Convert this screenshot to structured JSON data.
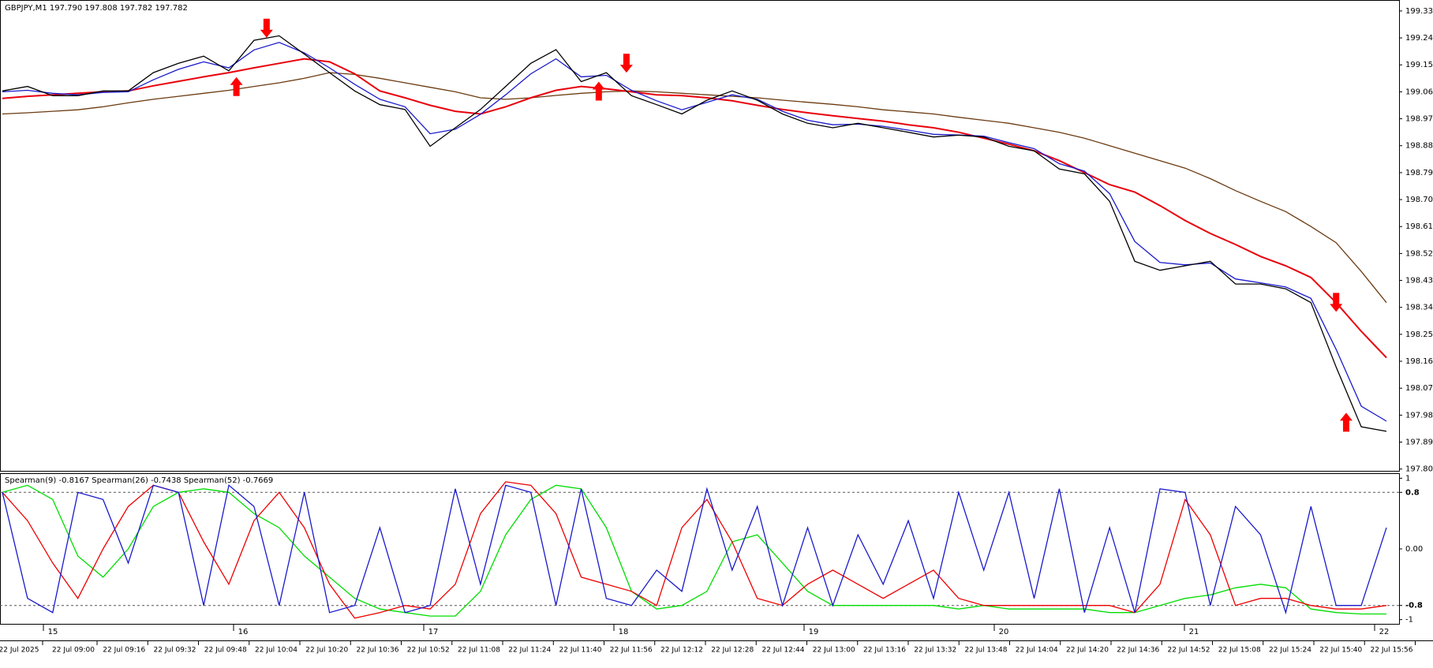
{
  "chart_data": [
    {
      "type": "line",
      "title": "GBPJPY,M1  197.790 197.808 197.782 197.782",
      "ylim": [
        197.794,
        199.364
      ],
      "yticks": [
        {
          "value": 199.33,
          "label": "199.330"
        },
        {
          "value": 199.24,
          "label": "199.240"
        },
        {
          "value": 199.15,
          "label": "199.150"
        },
        {
          "value": 199.06,
          "label": "199.060"
        },
        {
          "value": 198.97,
          "label": "198.970"
        },
        {
          "value": 198.88,
          "label": "198.880"
        },
        {
          "value": 198.79,
          "label": "198.790"
        },
        {
          "value": 198.7,
          "label": "198.700"
        },
        {
          "value": 198.61,
          "label": "198.610"
        },
        {
          "value": 198.52,
          "label": "198.520"
        },
        {
          "value": 198.43,
          "label": "198.430"
        },
        {
          "value": 198.34,
          "label": "198.340"
        },
        {
          "value": 198.25,
          "label": "198.250"
        },
        {
          "value": 198.16,
          "label": "198.160"
        },
        {
          "value": 198.07,
          "label": "198.070"
        },
        {
          "value": 197.98,
          "label": "197.980"
        },
        {
          "value": 197.89,
          "label": "197.890"
        },
        {
          "value": 197.8,
          "label": "197.800"
        }
      ],
      "series": [
        {
          "color": "#6b3a10",
          "values": [
            198.986,
            198.99,
            198.995,
            199.0,
            199.01,
            199.023,
            199.035,
            199.045,
            199.055,
            199.065,
            199.078,
            199.09,
            199.105,
            199.124,
            199.118,
            199.105,
            199.09,
            199.075,
            199.06,
            199.04,
            199.035,
            199.04,
            199.048,
            199.055,
            199.06,
            199.063,
            199.06,
            199.055,
            199.05,
            199.045,
            199.04,
            199.032,
            199.025,
            199.018,
            199.01,
            199.0,
            198.993,
            198.986,
            198.975,
            198.965,
            198.955,
            198.94,
            198.925,
            198.905,
            198.88,
            198.855,
            198.83,
            198.805,
            198.77,
            198.73,
            198.694,
            198.66,
            198.61,
            198.556,
            198.46,
            198.356
          ]
        },
        {
          "color": "#e8000b",
          "values": [
            199.038,
            199.045,
            199.05,
            199.055,
            199.06,
            199.063,
            199.08,
            199.095,
            199.11,
            199.124,
            199.14,
            199.155,
            199.17,
            199.16,
            199.12,
            199.063,
            199.04,
            199.015,
            198.995,
            198.986,
            199.01,
            199.04,
            199.065,
            199.078,
            199.07,
            199.06,
            199.05,
            199.047,
            199.04,
            199.03,
            199.015,
            199.001,
            198.99,
            198.98,
            198.971,
            198.962,
            198.95,
            198.94,
            198.925,
            198.905,
            198.885,
            198.863,
            198.83,
            198.79,
            198.75,
            198.725,
            198.68,
            198.63,
            198.587,
            198.55,
            198.51,
            198.479,
            198.44,
            198.356,
            198.26,
            198.172
          ]
        },
        {
          "color": "#1a1acc",
          "values": [
            199.06,
            199.065,
            199.055,
            199.05,
            199.058,
            199.06,
            199.1,
            199.135,
            199.16,
            199.14,
            199.2,
            199.225,
            199.19,
            199.14,
            199.085,
            199.035,
            199.01,
            198.92,
            198.935,
            198.985,
            199.05,
            199.12,
            199.17,
            199.11,
            199.115,
            199.065,
            199.03,
            199.0,
            199.025,
            199.05,
            199.035,
            198.995,
            198.965,
            198.95,
            198.952,
            198.945,
            198.932,
            198.918,
            198.916,
            198.912,
            198.89,
            198.87,
            198.82,
            198.795,
            198.72,
            198.56,
            198.49,
            198.482,
            198.488,
            198.435,
            198.422,
            198.408,
            198.37,
            198.2,
            198.01,
            197.96
          ]
        },
        {
          "color": "#000000",
          "values": [
            199.063,
            199.078,
            199.047,
            199.047,
            199.063,
            199.063,
            199.124,
            199.155,
            199.179,
            199.13,
            199.232,
            199.247,
            199.186,
            199.124,
            199.063,
            199.017,
            199.001,
            198.878,
            198.94,
            199.001,
            199.078,
            199.155,
            199.201,
            199.094,
            199.124,
            199.047,
            199.017,
            198.986,
            199.032,
            199.063,
            199.032,
            198.986,
            198.955,
            198.94,
            198.955,
            198.94,
            198.925,
            198.909,
            198.915,
            198.909,
            198.878,
            198.863,
            198.802,
            198.786,
            198.694,
            198.494,
            198.464,
            198.479,
            198.494,
            198.418,
            198.418,
            198.402,
            198.356,
            198.141,
            197.941,
            197.926
          ]
        }
      ],
      "markers": [
        {
          "x": 10.5,
          "value": 199.241,
          "direction": "down"
        },
        {
          "x": 9.3,
          "value": 199.109,
          "direction": "up"
        },
        {
          "x": 24.8,
          "value": 199.124,
          "direction": "down"
        },
        {
          "x": 23.7,
          "value": 199.094,
          "direction": "up"
        },
        {
          "x": 53.0,
          "value": 198.325,
          "direction": "down"
        },
        {
          "x": 53.4,
          "value": 197.988,
          "direction": "up"
        }
      ],
      "marker_color": "#ff0000",
      "period_labels": [
        "15",
        "16",
        "17",
        "18",
        "19",
        "20",
        "21",
        "22"
      ],
      "time_labels": [
        "22 Jul 2025",
        "22 Jul 09:00",
        "22 Jul 09:16",
        "22 Jul 09:32",
        "22 Jul 09:48",
        "22 Jul 10:04",
        "22 Jul 10:20",
        "22 Jul 10:36",
        "22 Jul 10:52",
        "22 Jul 11:08",
        "22 Jul 11:24",
        "22 Jul 11:40",
        "22 Jul 11:56",
        "22 Jul 12:12",
        "22 Jul 12:28",
        "22 Jul 12:44",
        "22 Jul 13:00",
        "22 Jul 13:16",
        "22 Jul 13:32",
        "22 Jul 13:48",
        "22 Jul 14:04",
        "22 Jul 14:20",
        "22 Jul 14:36",
        "22 Jul 14:52",
        "22 Jul 15:08",
        "22 Jul 15:24",
        "22 Jul 15:40",
        "22 Jul 15:56"
      ]
    },
    {
      "type": "line",
      "title": "Spearman(9) -0.8167  Spearman(26) -0.7438  Spearman(52) -0.7669",
      "ylim": [
        -1.06,
        1.06
      ],
      "yticks": [
        1,
        0.8,
        {
          "value": 0,
          "label": "0.00"
        },
        -0.8,
        -1
      ],
      "levels": [
        0.8,
        -0.8
      ],
      "series": [
        {
          "color": "#00dd00",
          "values": [
            0.8,
            0.9,
            0.7,
            -0.1,
            -0.4,
            0.0,
            0.6,
            0.8,
            0.85,
            0.8,
            0.5,
            0.3,
            -0.1,
            -0.4,
            -0.7,
            -0.85,
            -0.9,
            -0.95,
            -0.95,
            -0.6,
            0.2,
            0.7,
            0.9,
            0.85,
            0.3,
            -0.6,
            -0.85,
            -0.8,
            -0.6,
            0.1,
            0.2,
            -0.2,
            -0.6,
            -0.8,
            -0.8,
            -0.8,
            -0.8,
            -0.8,
            -0.85,
            -0.8,
            -0.85,
            -0.85,
            -0.85,
            -0.85,
            -0.9,
            -0.9,
            -0.8,
            -0.7,
            -0.65,
            -0.55,
            -0.5,
            -0.55,
            -0.85,
            -0.9,
            -0.92,
            -0.92
          ]
        },
        {
          "color": "#ee0000",
          "values": [
            0.8,
            0.4,
            -0.2,
            -0.7,
            0.0,
            0.6,
            0.9,
            0.8,
            0.1,
            -0.5,
            0.4,
            0.8,
            0.3,
            -0.5,
            -0.98,
            -0.9,
            -0.8,
            -0.85,
            -0.5,
            0.5,
            0.95,
            0.9,
            0.5,
            -0.4,
            -0.5,
            -0.6,
            -0.8,
            0.3,
            0.7,
            0.1,
            -0.7,
            -0.8,
            -0.5,
            -0.3,
            -0.5,
            -0.7,
            -0.5,
            -0.3,
            -0.7,
            -0.8,
            -0.8,
            -0.8,
            -0.8,
            -0.8,
            -0.8,
            -0.9,
            -0.5,
            0.7,
            0.2,
            -0.8,
            -0.7,
            -0.7,
            -0.8,
            -0.85,
            -0.85,
            -0.8
          ]
        },
        {
          "color": "#1a1acc",
          "values": [
            0.8,
            -0.7,
            -0.9,
            0.8,
            0.7,
            -0.2,
            0.9,
            0.8,
            -0.8,
            0.9,
            0.6,
            -0.8,
            0.8,
            -0.9,
            -0.8,
            0.3,
            -0.9,
            -0.8,
            0.85,
            -0.5,
            0.9,
            0.8,
            -0.8,
            0.85,
            -0.7,
            -0.8,
            -0.3,
            -0.6,
            0.85,
            -0.3,
            0.6,
            -0.8,
            0.3,
            -0.8,
            0.2,
            -0.5,
            0.4,
            -0.7,
            0.8,
            -0.3,
            0.8,
            -0.7,
            0.85,
            -0.9,
            0.3,
            -0.9,
            0.85,
            0.8,
            -0.8,
            0.6,
            0.2,
            -0.9,
            0.6,
            -0.8,
            -0.8,
            0.3
          ]
        }
      ]
    }
  ]
}
